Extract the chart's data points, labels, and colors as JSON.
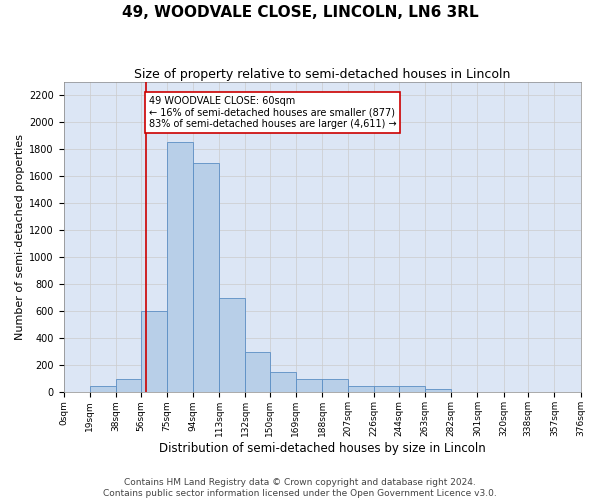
{
  "title": "49, WOODVALE CLOSE, LINCOLN, LN6 3RL",
  "subtitle": "Size of property relative to semi-detached houses in Lincoln",
  "xlabel": "Distribution of semi-detached houses by size in Lincoln",
  "ylabel": "Number of semi-detached properties",
  "bin_labels": [
    "0sqm",
    "19sqm",
    "38sqm",
    "56sqm",
    "75sqm",
    "94sqm",
    "113sqm",
    "132sqm",
    "150sqm",
    "169sqm",
    "188sqm",
    "207sqm",
    "226sqm",
    "244sqm",
    "263sqm",
    "282sqm",
    "301sqm",
    "320sqm",
    "338sqm",
    "357sqm",
    "376sqm"
  ],
  "bin_edges": [
    0,
    19,
    38,
    56,
    75,
    94,
    113,
    132,
    150,
    169,
    188,
    207,
    226,
    244,
    263,
    282,
    301,
    320,
    338,
    357,
    376
  ],
  "bar_heights": [
    0,
    50,
    100,
    600,
    1850,
    1700,
    700,
    300,
    150,
    100,
    100,
    50,
    50,
    50,
    25,
    0,
    0,
    0,
    0,
    0
  ],
  "bar_color": "#b8cfe8",
  "bar_edge_color": "#5b8ec4",
  "property_line_x": 60,
  "property_line_color": "#cc0000",
  "annotation_text": "49 WOODVALE CLOSE: 60sqm\n← 16% of semi-detached houses are smaller (877)\n83% of semi-detached houses are larger (4,611) →",
  "annotation_box_color": "#ffffff",
  "annotation_box_edge_color": "#cc0000",
  "ylim": [
    0,
    2300
  ],
  "yticks": [
    0,
    200,
    400,
    600,
    800,
    1000,
    1200,
    1400,
    1600,
    1800,
    2000,
    2200
  ],
  "grid_color": "#cccccc",
  "background_color": "#dce6f5",
  "footer_text": "Contains HM Land Registry data © Crown copyright and database right 2024.\nContains public sector information licensed under the Open Government Licence v3.0.",
  "title_fontsize": 11,
  "subtitle_fontsize": 9,
  "label_fontsize": 8,
  "tick_fontsize": 7,
  "footer_fontsize": 6.5
}
